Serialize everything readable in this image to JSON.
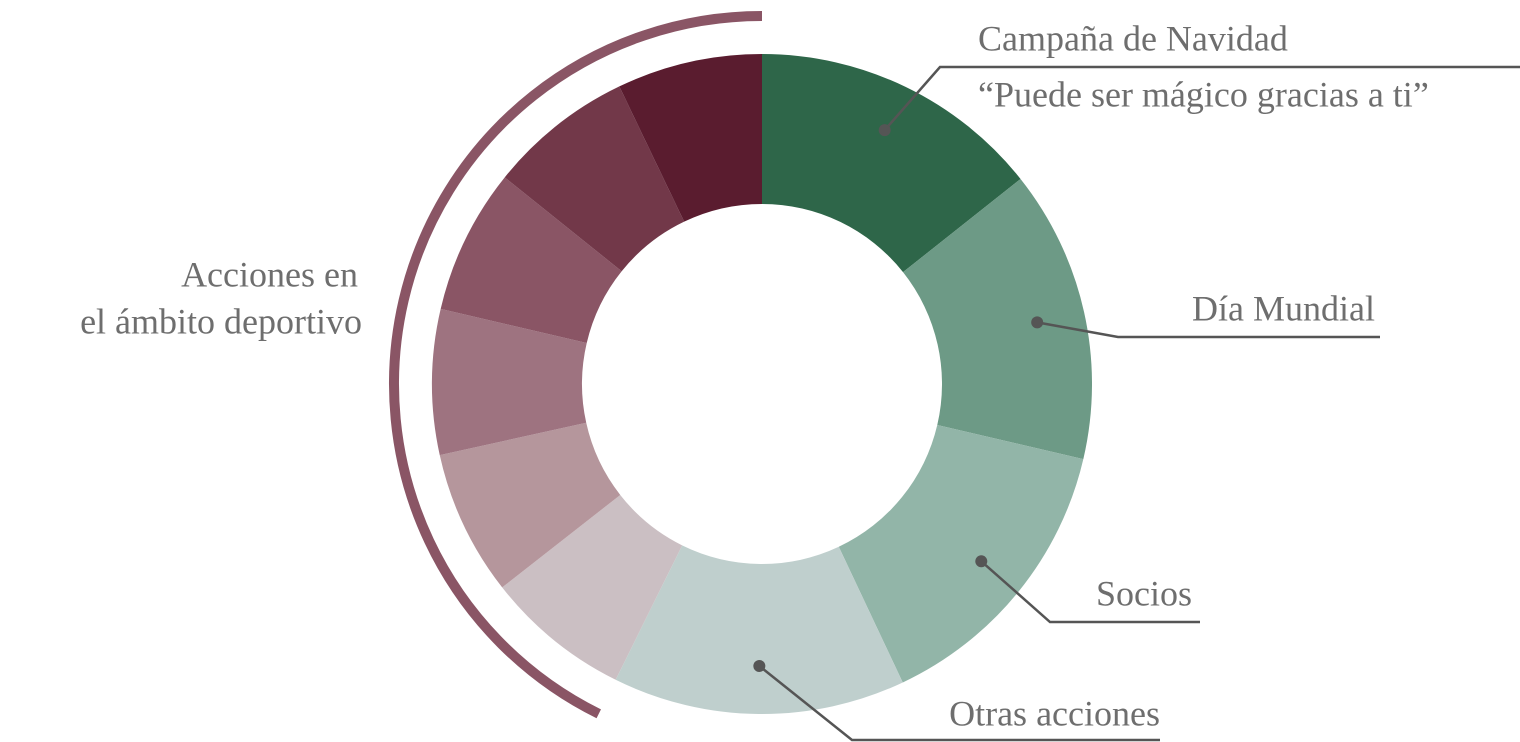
{
  "chart_data": {
    "type": "donut",
    "categories": [
      [
        "Campaña de Navidad",
        "“Puede ser mágico gracias a ti”"
      ],
      [
        "Día Mundial"
      ],
      [
        "Socios"
      ],
      [
        "Otras acciones"
      ],
      null,
      null,
      null,
      null,
      null,
      null
    ],
    "values": [
      14.3,
      14.3,
      14.3,
      14.3,
      7.1,
      7.1,
      7.1,
      7.1,
      7.1,
      7.1
    ],
    "colors": [
      "#2e6649",
      "#6d9a86",
      "#92b5a8",
      "#bfcfcd",
      "#cbbfc3",
      "#b5969c",
      "#9e7380",
      "#8a5565",
      "#723849",
      "#5a1c2f"
    ],
    "group_label": [
      "Acciones en",
      "el ámbito deportivo"
    ],
    "group_color": "#8a5565"
  }
}
